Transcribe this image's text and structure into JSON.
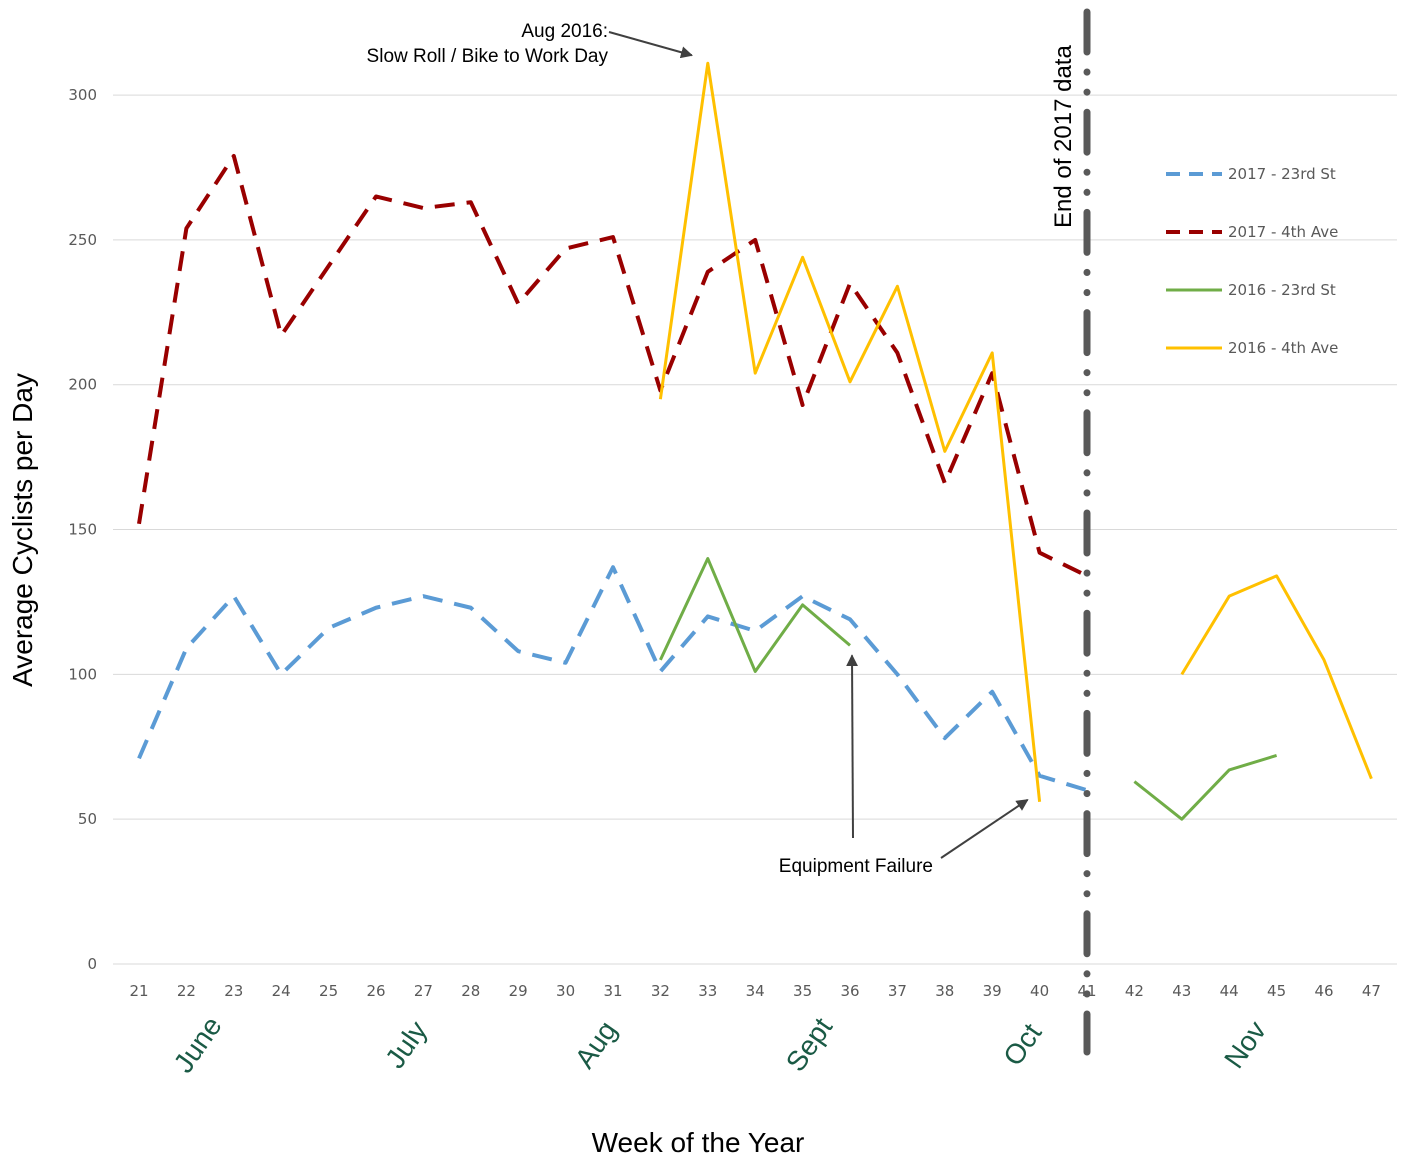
{
  "chart_data": {
    "type": "line",
    "xlabel": "Week of the Year",
    "ylabel": "Average Cyclists per Day",
    "ylim": [
      0,
      300
    ],
    "yticks": [
      0,
      50,
      100,
      150,
      200,
      250,
      300
    ],
    "x": [
      21,
      22,
      23,
      24,
      25,
      26,
      27,
      28,
      29,
      30,
      31,
      32,
      33,
      34,
      35,
      36,
      37,
      38,
      39,
      40,
      41,
      42,
      43,
      44,
      45,
      46,
      47
    ],
    "grid": "horizontal",
    "legend_position": "right",
    "months": [
      {
        "label": "June",
        "week": 22.4
      },
      {
        "label": "July",
        "week": 26.8
      },
      {
        "label": "Aug",
        "week": 30.8
      },
      {
        "label": "Sept",
        "week": 35.3
      },
      {
        "label": "Oct",
        "week": 39.8
      },
      {
        "label": "Nov",
        "week": 44.5
      }
    ],
    "series": [
      {
        "name": "2017 - 23rd St",
        "color": "#5b9bd5",
        "dash": "dashed",
        "x": [
          21,
          22,
          23,
          24,
          25,
          26,
          27,
          28,
          29,
          30,
          31,
          32,
          33,
          34,
          35,
          36,
          37,
          38,
          39,
          40,
          41
        ],
        "values": [
          71,
          109,
          127,
          100,
          116,
          123,
          127,
          123,
          108,
          104,
          137,
          101,
          120,
          115,
          127,
          119,
          100,
          78,
          94,
          65,
          60
        ]
      },
      {
        "name": "2017 - 4th Ave",
        "color": "#990000",
        "dash": "dashed",
        "x": [
          21,
          22,
          23,
          24,
          25,
          26,
          27,
          28,
          29,
          30,
          31,
          32,
          33,
          34,
          35,
          36,
          37,
          38,
          39,
          40,
          41
        ],
        "values": [
          152,
          254,
          279,
          217,
          241,
          265,
          261,
          263,
          228,
          247,
          251,
          198,
          239,
          250,
          193,
          235,
          211,
          166,
          204,
          142,
          134
        ]
      },
      {
        "name": "2016 - 23rd St",
        "color": "#70ad47",
        "dash": "solid",
        "segments": [
          {
            "x": [
              32,
              33,
              34,
              35,
              36
            ],
            "values": [
              105,
              140,
              101,
              124,
              110
            ]
          },
          {
            "x": [
              42,
              43,
              44,
              45
            ],
            "values": [
              63,
              50,
              67,
              72
            ]
          }
        ]
      },
      {
        "name": "2016 - 4th Ave",
        "color": "#ffc000",
        "dash": "solid",
        "segments": [
          {
            "x": [
              32,
              33,
              34,
              35,
              36,
              37,
              38,
              39,
              40
            ],
            "values": [
              195,
              311,
              204,
              244,
              201,
              234,
              177,
              211,
              56
            ]
          },
          {
            "x": [
              43,
              44,
              45,
              46,
              47
            ],
            "values": [
              100,
              127,
              134,
              105,
              64
            ]
          }
        ]
      }
    ],
    "annotations": [
      {
        "lines": [
          "Aug 2016:",
          "Slow Roll / Bike to Work Day"
        ],
        "target_week": 33,
        "target_value": 311
      },
      {
        "lines": [
          "Equipment Failure"
        ],
        "targets": [
          {
            "week": 36,
            "value": 110
          },
          {
            "week": 40,
            "value": 56
          }
        ]
      }
    ],
    "vertical_marker": {
      "week": 41,
      "label": "End of 2017 data"
    }
  }
}
